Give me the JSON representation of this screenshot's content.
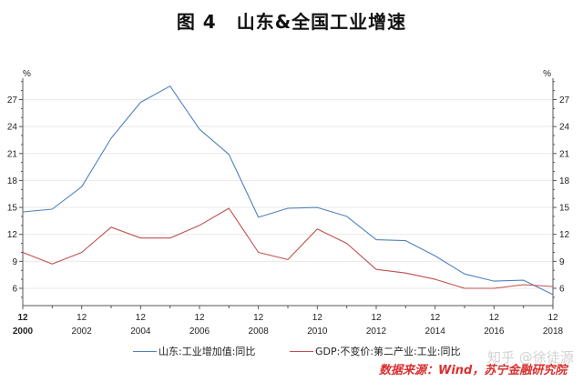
{
  "title": {
    "figure_label": "图 4",
    "text": "山东&全国工业增速"
  },
  "axis": {
    "left_unit": "%",
    "right_unit": "%",
    "y_ticks": [
      6,
      9,
      12,
      15,
      18,
      21,
      24,
      27
    ],
    "x_tick_month": "12",
    "x_tick_years": [
      "2000",
      "2002",
      "2004",
      "2006",
      "2008",
      "2010",
      "2012",
      "2014",
      "2016",
      "2018"
    ]
  },
  "legend": {
    "series1": "山东:工业增加值:同比",
    "series2": "GDP:不变价:第二产业:工业:同比"
  },
  "source": "数据来源：Wind，苏宁金融研究院",
  "watermark": "知乎 @徐徒源",
  "colors": {
    "shandong": "#4f81bd",
    "national": "#c0504d",
    "grid": "#e8e8e8",
    "axis": "#555555",
    "source": "#d8302f"
  },
  "chart_data": {
    "type": "line",
    "title": "图 4 山东&全国工业增速",
    "xlabel": "",
    "ylabel": "%",
    "x": [
      "2000-12",
      "2001-12",
      "2002-12",
      "2003-12",
      "2004-12",
      "2005-12",
      "2006-12",
      "2007-12",
      "2008-12",
      "2009-12",
      "2010-12",
      "2011-12",
      "2012-12",
      "2013-12",
      "2014-12",
      "2015-12",
      "2016-12",
      "2017-12",
      "2018-12"
    ],
    "series": [
      {
        "name": "山东:工业增加值:同比",
        "color": "#4f81bd",
        "values": [
          14.5,
          14.8,
          17.3,
          22.7,
          26.7,
          28.5,
          23.7,
          20.9,
          13.9,
          14.9,
          15.0,
          14.0,
          11.4,
          11.3,
          9.6,
          7.6,
          6.8,
          6.9,
          5.3
        ]
      },
      {
        "name": "GDP:不变价:第二产业:工业:同比",
        "color": "#c0504d",
        "values": [
          10.0,
          8.7,
          10.0,
          12.8,
          11.6,
          11.6,
          13.0,
          14.9,
          10.0,
          9.2,
          12.6,
          11.0,
          8.1,
          7.7,
          7.0,
          6.0,
          6.0,
          6.4,
          6.2
        ]
      }
    ],
    "ylim": [
      4.2,
      29.5
    ],
    "y_ticks": [
      6,
      9,
      12,
      15,
      18,
      21,
      24,
      27
    ],
    "grid": true,
    "dual_y_axis": true,
    "legend_position": "bottom"
  }
}
